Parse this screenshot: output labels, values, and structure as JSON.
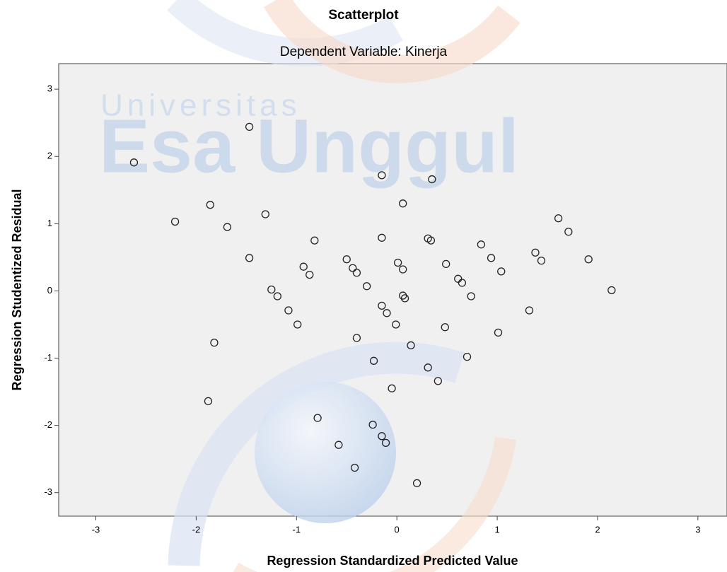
{
  "watermark": [
    "Universitas",
    "Esa Unggul"
  ],
  "chart_data": {
    "type": "scatter",
    "title": "Scatterplot",
    "subtitle": "Dependent Variable: Kinerja",
    "x_label": "Regression Standardized Predicted Value",
    "y_label": "Regression Studentized Residual",
    "xlim": [
      -3.37,
      3.29
    ],
    "ylim": [
      -3.35,
      3.38
    ],
    "xticks": [
      -3,
      -2,
      -1,
      0,
      1,
      2,
      3
    ],
    "yticks": [
      -3,
      -2,
      -1,
      0,
      1,
      2,
      3
    ],
    "color": "#222222",
    "x": [
      -2.62,
      -1.47,
      -0.15,
      0.35,
      -2.21,
      -1.86,
      -1.69,
      -1.31,
      0.06,
      1.61,
      1.71,
      -1.47,
      -0.82,
      -0.15,
      0.31,
      0.34,
      0.84,
      0.94,
      1.38,
      1.44,
      1.91,
      -0.93,
      -0.87,
      -0.5,
      -0.44,
      -0.4,
      0.01,
      0.06,
      0.49,
      0.61,
      0.65,
      1.04,
      -0.3,
      -1.25,
      -1.19,
      0.06,
      0.08,
      0.74,
      2.14,
      -1.08,
      -0.15,
      -0.1,
      -0.99,
      -0.01,
      0.48,
      1.01,
      1.32,
      -1.82,
      -0.4,
      0.14,
      0.7,
      -0.23,
      0.31,
      0.41,
      -0.05,
      -1.88,
      -0.79,
      -0.24,
      -0.15,
      -0.11,
      -0.58,
      -0.42,
      0.2
    ],
    "y": [
      1.91,
      2.44,
      1.72,
      1.66,
      1.03,
      1.28,
      0.95,
      1.14,
      1.3,
      1.08,
      0.88,
      0.49,
      0.75,
      0.79,
      0.78,
      0.75,
      0.69,
      0.49,
      0.57,
      0.45,
      0.47,
      0.36,
      0.24,
      0.47,
      0.34,
      0.27,
      0.42,
      0.32,
      0.4,
      0.18,
      0.12,
      0.29,
      0.07,
      0.02,
      -0.08,
      -0.07,
      -0.11,
      -0.08,
      0.01,
      -0.29,
      -0.22,
      -0.33,
      -0.5,
      -0.5,
      -0.54,
      -0.62,
      -0.29,
      -0.77,
      -0.7,
      -0.81,
      -0.98,
      -1.04,
      -1.14,
      -1.34,
      -1.45,
      -1.64,
      -1.89,
      -1.99,
      -2.16,
      -2.26,
      -2.29,
      -2.63,
      -2.86
    ]
  }
}
